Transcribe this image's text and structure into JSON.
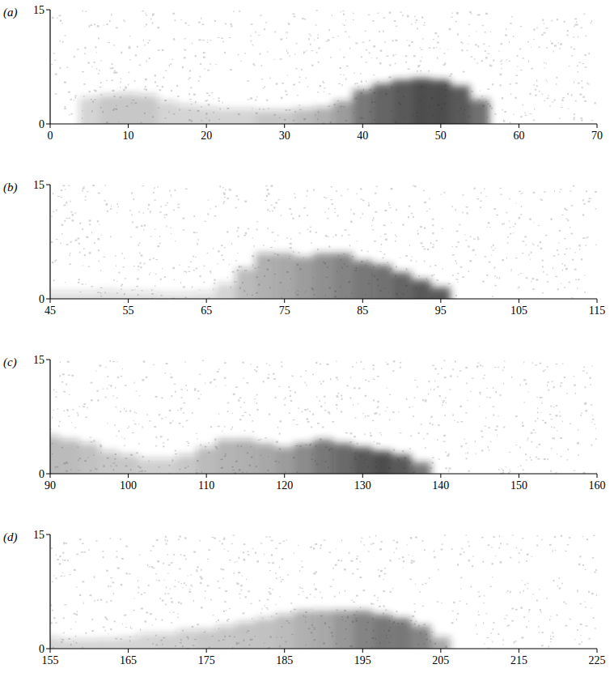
{
  "chart_data": [
    {
      "type": "area",
      "label": "(a)",
      "color": "#222222",
      "x": [
        5,
        7.5,
        10,
        12.5,
        15,
        17.5,
        20,
        22.5,
        25,
        27.5,
        30,
        32.5,
        35,
        37.5,
        40,
        42.5,
        45,
        47.5,
        50,
        52.5,
        55,
        57.5,
        60,
        62.5,
        65,
        67.5,
        70
      ],
      "values": [
        3.5,
        3.8,
        4,
        3.8,
        3,
        2.5,
        2.2,
        2,
        2,
        1.8,
        1.8,
        2,
        2.2,
        3,
        4.5,
        5.3,
        5.8,
        6,
        5.8,
        5,
        3.2,
        0,
        0,
        0,
        0,
        0,
        0
      ],
      "intensity": [
        0.2,
        0.25,
        0.25,
        0.25,
        0.2,
        0.2,
        0.2,
        0.2,
        0.2,
        0.25,
        0.25,
        0.3,
        0.35,
        0.45,
        0.6,
        0.7,
        0.75,
        0.8,
        0.8,
        0.75,
        0.65,
        0,
        0,
        0,
        0,
        0,
        0
      ],
      "xlim": [
        0,
        70
      ],
      "ylim": [
        0,
        15
      ],
      "xticks": [
        0,
        10,
        20,
        30,
        40,
        50,
        60,
        70
      ],
      "yticks": [
        0,
        15
      ]
    },
    {
      "type": "area",
      "label": "(b)",
      "color": "#222222",
      "x": [
        45,
        47.5,
        50,
        52.5,
        55,
        57.5,
        60,
        62.5,
        65,
        67.5,
        70,
        72.5,
        75,
        77.5,
        80,
        82.5,
        85,
        87.5,
        90,
        92.5,
        95,
        97.5,
        100,
        102.5,
        105,
        107.5,
        110,
        112.5,
        115
      ],
      "values": [
        1,
        1,
        1,
        1.2,
        1,
        1,
        0.8,
        0.8,
        1,
        2,
        4,
        6,
        6,
        5.5,
        6,
        6,
        5,
        4.5,
        3.5,
        2.5,
        1.5,
        0,
        0,
        0,
        0,
        0,
        0,
        0,
        0
      ],
      "intensity": [
        0.15,
        0.15,
        0.15,
        0.15,
        0.15,
        0.15,
        0.15,
        0.15,
        0.15,
        0.2,
        0.3,
        0.35,
        0.4,
        0.45,
        0.5,
        0.55,
        0.6,
        0.65,
        0.7,
        0.75,
        0.75,
        0,
        0,
        0,
        0,
        0,
        0,
        0,
        0
      ],
      "xlim": [
        45,
        115
      ],
      "ylim": [
        0,
        15
      ],
      "xticks": [
        45,
        55,
        65,
        75,
        85,
        95,
        105,
        115
      ],
      "yticks": [
        0,
        15
      ]
    },
    {
      "type": "area",
      "label": "(c)",
      "color": "#222222",
      "x": [
        90,
        92.5,
        95,
        97.5,
        100,
        102.5,
        105,
        107.5,
        110,
        112.5,
        115,
        117.5,
        120,
        122.5,
        125,
        127.5,
        130,
        132.5,
        135,
        137.5,
        140,
        142.5,
        145,
        147.5,
        150,
        152.5,
        155,
        157.5,
        160
      ],
      "values": [
        5,
        4.5,
        4,
        3,
        2.5,
        2,
        2,
        2.5,
        3.5,
        4.5,
        4.5,
        4,
        3.5,
        4,
        4.5,
        4,
        3.5,
        3,
        2.5,
        1.5,
        0,
        0,
        0,
        0,
        0,
        0,
        0,
        0,
        0
      ],
      "intensity": [
        0.3,
        0.3,
        0.28,
        0.25,
        0.25,
        0.22,
        0.22,
        0.25,
        0.3,
        0.33,
        0.35,
        0.4,
        0.45,
        0.52,
        0.6,
        0.68,
        0.75,
        0.8,
        0.75,
        0.6,
        0,
        0,
        0,
        0,
        0,
        0,
        0,
        0,
        0
      ],
      "xlim": [
        90,
        160
      ],
      "ylim": [
        0,
        15
      ],
      "xticks": [
        90,
        100,
        110,
        120,
        130,
        140,
        150,
        160
      ],
      "yticks": [
        0,
        15
      ]
    },
    {
      "type": "area",
      "label": "(d)",
      "color": "#222222",
      "x": [
        155,
        157.5,
        160,
        162.5,
        165,
        167.5,
        170,
        172.5,
        175,
        177.5,
        180,
        182.5,
        185,
        187.5,
        190,
        192.5,
        195,
        197.5,
        200,
        202.5,
        205,
        207.5,
        210,
        212.5,
        215,
        217.5,
        220,
        222.5,
        225
      ],
      "values": [
        1.5,
        1.2,
        1.2,
        1.3,
        1.5,
        2,
        2,
        2.5,
        2.5,
        3,
        3.5,
        4,
        4.5,
        5,
        5,
        5,
        5,
        4.5,
        4,
        3,
        1.5,
        0,
        0,
        0,
        0,
        0,
        0,
        0,
        0
      ],
      "intensity": [
        0.2,
        0.2,
        0.2,
        0.2,
        0.2,
        0.2,
        0.22,
        0.22,
        0.25,
        0.25,
        0.27,
        0.28,
        0.3,
        0.35,
        0.4,
        0.47,
        0.55,
        0.6,
        0.6,
        0.55,
        0.4,
        0,
        0,
        0,
        0,
        0,
        0,
        0,
        0
      ],
      "xlim": [
        155,
        225
      ],
      "ylim": [
        0,
        15
      ],
      "xticks": [
        155,
        165,
        175,
        185,
        195,
        205,
        215,
        225
      ],
      "yticks": [
        0,
        15
      ]
    }
  ]
}
